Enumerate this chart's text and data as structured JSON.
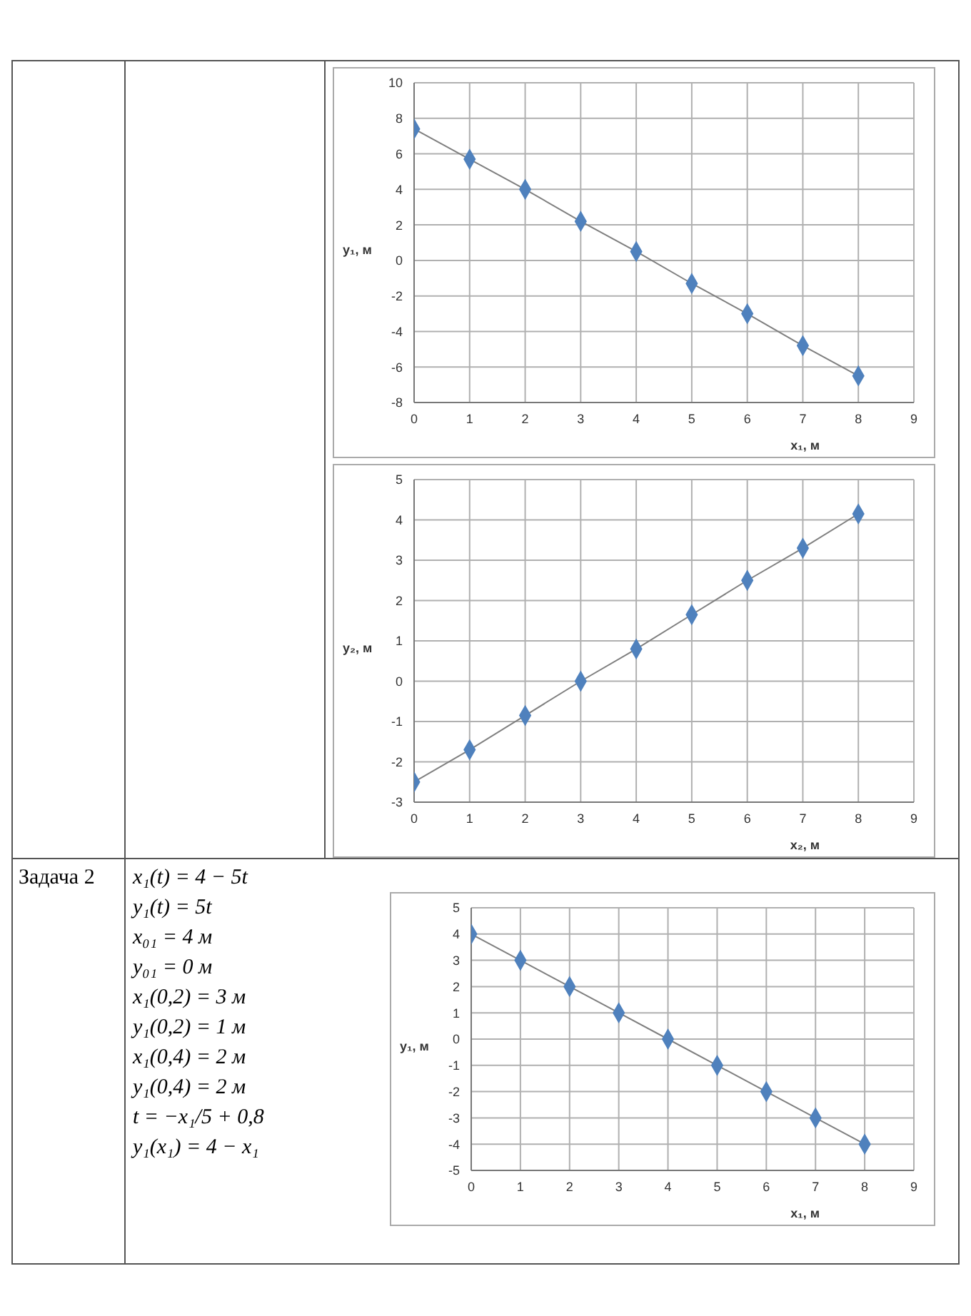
{
  "chart_data": [
    {
      "type": "scatter",
      "xlabel": "x₁, м",
      "ylabel": "y₁, м",
      "x": [
        0,
        1,
        2,
        3,
        4,
        5,
        6,
        7,
        8
      ],
      "xlim": [
        0,
        9
      ],
      "xticks": [
        0,
        1,
        2,
        3,
        4,
        5,
        6,
        7,
        8,
        9
      ],
      "ylim": [
        -8,
        10
      ],
      "yticks": [
        -8,
        -6,
        -4,
        -2,
        0,
        2,
        4,
        6,
        8,
        10
      ],
      "grid": true,
      "marker": "diamond",
      "series": [
        {
          "type": "line",
          "marker": "none",
          "color": "#7f7f7f",
          "values": [
            7.4,
            5.7,
            4.0,
            2.2,
            0.5,
            -1.3,
            -3.0,
            -4.8,
            -6.5
          ]
        },
        {
          "color": "#4f81bd",
          "values": [
            7.4,
            5.7,
            4.0,
            2.2,
            0.5,
            -1.3,
            -3.0,
            -4.8,
            -6.5
          ]
        }
      ]
    },
    {
      "type": "scatter",
      "xlabel": "x₂, м",
      "ylabel": "y₂, м",
      "x": [
        0,
        1,
        2,
        3,
        4,
        5,
        6,
        7,
        8
      ],
      "xlim": [
        0,
        9
      ],
      "xticks": [
        0,
        1,
        2,
        3,
        4,
        5,
        6,
        7,
        8,
        9
      ],
      "ylim": [
        -3,
        5
      ],
      "yticks": [
        -3,
        -2,
        -1,
        0,
        1,
        2,
        3,
        4,
        5
      ],
      "grid": true,
      "marker": "diamond",
      "series": [
        {
          "type": "line",
          "marker": "none",
          "color": "#7f7f7f",
          "values": [
            -2.5,
            -1.7,
            -0.85,
            0,
            0.8,
            1.65,
            2.5,
            3.3,
            4.15
          ]
        },
        {
          "color": "#4f81bd",
          "values": [
            -2.5,
            -1.7,
            -0.85,
            0,
            0.8,
            1.65,
            2.5,
            3.3,
            4.15
          ]
        }
      ]
    },
    {
      "type": "other",
      "title": "Задача 2",
      "annotations": [
        "x₁(t) = 4 − 5t",
        "y₁(t) = 5t",
        "x₀₁ = 4 м",
        "y₀₁ = 0 м",
        "x₁(0,2) = 3 м",
        "y₁(0,2) = 1 м",
        "x₁(0,4) = 2 м",
        "y₁(0,4) = 2 м",
        "t = −x₁/5 + 0,8",
        "y₁(x₁) = 4 − x₁"
      ]
    },
    {
      "type": "scatter",
      "xlabel": "x₁, м",
      "ylabel": "y₁, м",
      "x": [
        0,
        1,
        2,
        3,
        4,
        5,
        6,
        7,
        8
      ],
      "xlim": [
        0,
        9
      ],
      "xticks": [
        0,
        1,
        2,
        3,
        4,
        5,
        6,
        7,
        8,
        9
      ],
      "ylim": [
        -5,
        5
      ],
      "yticks": [
        -5,
        -4,
        -3,
        -2,
        -1,
        0,
        1,
        2,
        3,
        4,
        5
      ],
      "grid": true,
      "marker": "diamond",
      "series": [
        {
          "type": "line",
          "marker": "none",
          "color": "#7f7f7f",
          "values": [
            4,
            3,
            2,
            1,
            0,
            -1,
            -2,
            -3,
            -4
          ]
        },
        {
          "color": "#4f81bd",
          "values": [
            4,
            3,
            2,
            1,
            0,
            -1,
            -2,
            -3,
            -4
          ]
        }
      ]
    }
  ]
}
